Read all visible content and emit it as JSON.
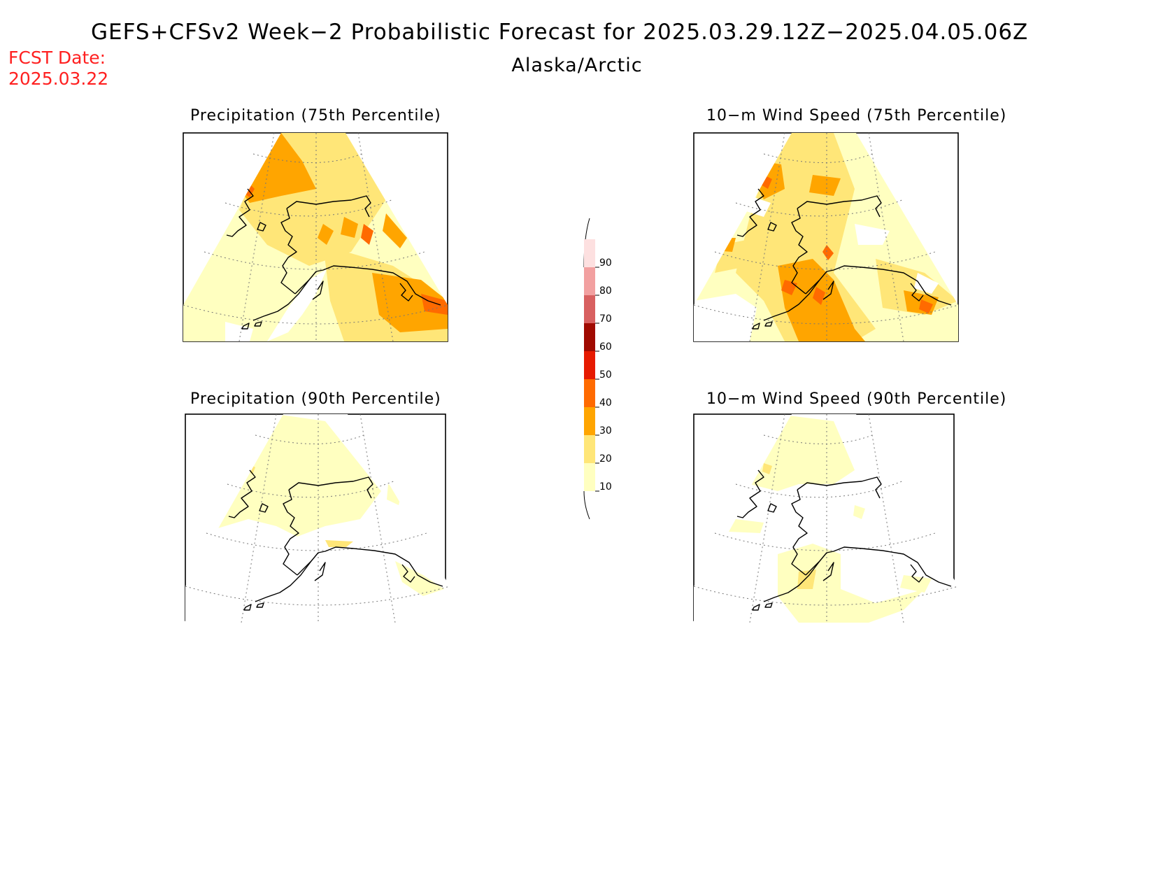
{
  "header": {
    "title": "GEFS+CFSv2 Week−2 Probabilistic Forecast for 2025.03.29.12Z−2025.04.05.06Z",
    "subtitle": "Alaska/Arctic",
    "fcst_label": "FCST Date:",
    "fcst_date": "2025.03.22"
  },
  "panels": [
    {
      "id": "precip-75",
      "title": "Precipitation (75th Percentile)"
    },
    {
      "id": "wind-75",
      "title": "10−m Wind Speed (75th Percentile)"
    },
    {
      "id": "precip-90",
      "title": "Precipitation (90th Percentile)"
    },
    {
      "id": "wind-90",
      "title": "10−m Wind Speed (90th Percentile)"
    }
  ],
  "colorbar": {
    "levels": [
      "10",
      "20",
      "30",
      "40",
      "50",
      "60",
      "70",
      "80",
      "90"
    ],
    "colors": [
      "#ffffc0",
      "#ffe678",
      "#ffa500",
      "#ff6a00",
      "#e61a00",
      "#a00a00",
      "#d86060",
      "#f2a0a0",
      "#fde0e0"
    ]
  }
}
